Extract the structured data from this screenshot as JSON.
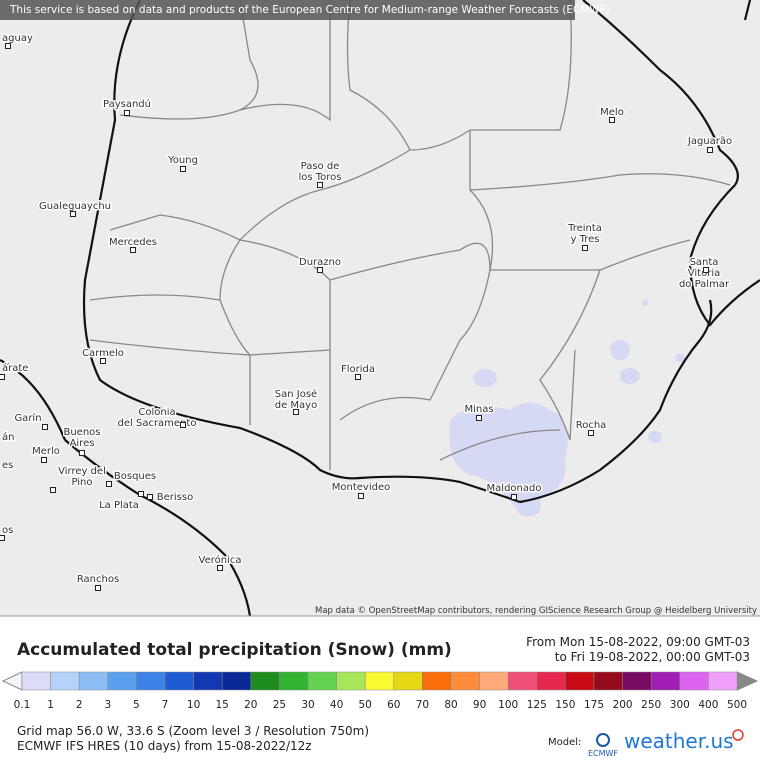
{
  "banner": "This service is based on data and products of the European Centre for Medium-range Weather Forecasts (ECMWF)",
  "places": [
    {
      "lines": [
        "aguay"
      ]
    },
    {
      "lines": [
        "Paysandú"
      ]
    },
    {
      "lines": [
        "Young"
      ]
    },
    {
      "lines": [
        "Paso de",
        "los Toros"
      ]
    },
    {
      "lines": [
        "Melo"
      ]
    },
    {
      "lines": [
        "Jaguarão"
      ]
    },
    {
      "lines": [
        "Gualeguaychu"
      ]
    },
    {
      "lines": [
        "Mercedes"
      ]
    },
    {
      "lines": [
        "Durazno"
      ]
    },
    {
      "lines": [
        "Treinta",
        "y Tres"
      ]
    },
    {
      "lines": [
        "Santa",
        "Vitória",
        "do Palmar"
      ]
    },
    {
      "lines": [
        "Carmelo"
      ]
    },
    {
      "lines": [
        "árate"
      ]
    },
    {
      "lines": [
        "Florida"
      ]
    },
    {
      "lines": [
        "San José",
        "de Mayo"
      ]
    },
    {
      "lines": [
        "Colonia",
        "del Sacramento"
      ]
    },
    {
      "lines": [
        "Minas"
      ]
    },
    {
      "lines": [
        "Rocha"
      ]
    },
    {
      "lines": [
        "Garín"
      ]
    },
    {
      "lines": [
        "Buenos",
        "Aires"
      ]
    },
    {
      "lines": [
        "án"
      ]
    },
    {
      "lines": [
        "Merlo"
      ]
    },
    {
      "lines": [
        "es"
      ]
    },
    {
      "lines": [
        "Virrey del",
        "Pino"
      ]
    },
    {
      "lines": [
        "Bosques"
      ]
    },
    {
      "lines": [
        "Berisso"
      ]
    },
    {
      "lines": [
        "Maldonado"
      ]
    },
    {
      "lines": [
        "Montevideo"
      ]
    },
    {
      "lines": [
        "La Plata"
      ]
    },
    {
      "lines": [
        "os"
      ]
    },
    {
      "lines": [
        "Verónica"
      ]
    },
    {
      "lines": [
        "Ranchos"
      ]
    }
  ],
  "attribution": "Map data © OpenStreetMap contributors, rendering GIScience Research Group @ Heidelberg University",
  "legend": {
    "title": "Accumulated total precipitation (Snow) (mm)",
    "from": "From Mon 15-08-2022, 09:00 GMT-03",
    "to": "to Fri 19-08-2022, 00:00 GMT-03",
    "labels": [
      0.1,
      1,
      2,
      3,
      5,
      7,
      10,
      15,
      20,
      25,
      30,
      40,
      50,
      60,
      70,
      80,
      90,
      100,
      125,
      150,
      175,
      200,
      250,
      300,
      400,
      500
    ],
    "colors": [
      "#dcdcf8",
      "#b4d2fa",
      "#8cbef5",
      "#5aa0ef",
      "#3c82e6",
      "#1e5ad2",
      "#1437b4",
      "#0a2896",
      "#1e8c1e",
      "#32b432",
      "#64d250",
      "#a8e65a",
      "#fafa32",
      "#e6d814",
      "#fa6e0a",
      "#ff8c3c",
      "#ffaa78",
      "#f05078",
      "#e6284e",
      "#c80a14",
      "#960a1e",
      "#780a64",
      "#a01eb4",
      "#dc64f0",
      "#f0a0fa",
      "#c8c8c8"
    ]
  },
  "grid_info": "Grid map 56.0 W, 33.6 S (Zoom level 3 / Resolution 750m)",
  "model_info": "ECMWF IFS HRES (10 days) from 15-08-2022/12z",
  "logo": {
    "model_label": "Model:",
    "ecmwf": "ECMWF",
    "brand": "weather.us"
  }
}
